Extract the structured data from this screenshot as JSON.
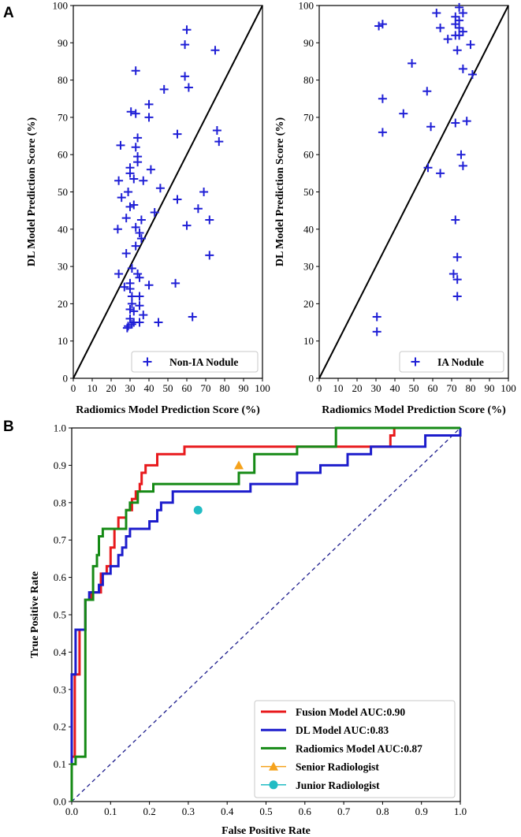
{
  "chart_data": [
    {
      "type": "scatter",
      "panel_label": "A",
      "xlabel": "Radiomics Model Prediction Score (%)",
      "ylabel": "DL Model Prediction Score (%)",
      "xlim": [
        0,
        100
      ],
      "ylim": [
        0,
        100
      ],
      "xticks": [
        "0",
        "10",
        "20",
        "30",
        "40",
        "50",
        "60",
        "70",
        "80",
        "90",
        "100"
      ],
      "yticks": [
        "0",
        "10",
        "20",
        "30",
        "40",
        "50",
        "60",
        "70",
        "80",
        "90",
        "100"
      ],
      "reference_line": [
        [
          0,
          0
        ],
        [
          100,
          100
        ]
      ],
      "legend_label": "Non-IA Nodule",
      "legend_position": "lower-right",
      "marker_color": "#1f1fd6",
      "points": [
        [
          60,
          93.5
        ],
        [
          59,
          89.5
        ],
        [
          75,
          88
        ],
        [
          33,
          82.5
        ],
        [
          59,
          81
        ],
        [
          61,
          78
        ],
        [
          48,
          77.5
        ],
        [
          30.5,
          71.5
        ],
        [
          33,
          71
        ],
        [
          40,
          73.5
        ],
        [
          40,
          70
        ],
        [
          76,
          66.5
        ],
        [
          77,
          63.5
        ],
        [
          55,
          65.5
        ],
        [
          34,
          64.5
        ],
        [
          25,
          62.5
        ],
        [
          33,
          62
        ],
        [
          34,
          59.5
        ],
        [
          34,
          58
        ],
        [
          30,
          56.5
        ],
        [
          41,
          56
        ],
        [
          30,
          55
        ],
        [
          32,
          53.5
        ],
        [
          37,
          53
        ],
        [
          24,
          53
        ],
        [
          46,
          51
        ],
        [
          29,
          50
        ],
        [
          25.5,
          48.5
        ],
        [
          32,
          46.5
        ],
        [
          30,
          46
        ],
        [
          55,
          48
        ],
        [
          69,
          50
        ],
        [
          66,
          45.5
        ],
        [
          72,
          42.5
        ],
        [
          60,
          41
        ],
        [
          43,
          44.5
        ],
        [
          28,
          43
        ],
        [
          36,
          42.5
        ],
        [
          33,
          40.5
        ],
        [
          23.5,
          40
        ],
        [
          35,
          39
        ],
        [
          36,
          37.5
        ],
        [
          33,
          35.5
        ],
        [
          72,
          33
        ],
        [
          28,
          33.5
        ],
        [
          31,
          29.5
        ],
        [
          24,
          28
        ],
        [
          34,
          28
        ],
        [
          35,
          27
        ],
        [
          30,
          25.5
        ],
        [
          27,
          24.5
        ],
        [
          30,
          24
        ],
        [
          40,
          25
        ],
        [
          54,
          25.5
        ],
        [
          31,
          22
        ],
        [
          35,
          22
        ],
        [
          31,
          20
        ],
        [
          35,
          19.5
        ],
        [
          30,
          18.5
        ],
        [
          32,
          18
        ],
        [
          37,
          17
        ],
        [
          30,
          16
        ],
        [
          32,
          15
        ],
        [
          35,
          15
        ],
        [
          29,
          14
        ],
        [
          31,
          14.5
        ],
        [
          28.5,
          13.5
        ],
        [
          45,
          15
        ],
        [
          63,
          16.5
        ]
      ]
    },
    {
      "type": "scatter",
      "xlabel": "Radiomics Model Prediction Score (%)",
      "ylabel": "DL Model Prediction Score (%)",
      "xlim": [
        0,
        100
      ],
      "ylim": [
        0,
        100
      ],
      "xticks": [
        "0",
        "10",
        "20",
        "30",
        "40",
        "50",
        "60",
        "70",
        "80",
        "90",
        "100"
      ],
      "yticks": [
        "0",
        "10",
        "20",
        "30",
        "40",
        "50",
        "60",
        "70",
        "80",
        "90",
        "100"
      ],
      "reference_line": [
        [
          0,
          0
        ],
        [
          100,
          100
        ]
      ],
      "legend_label": "IA Nodule",
      "legend_position": "lower-right",
      "marker_color": "#1f1fd6",
      "points": [
        [
          74,
          99.5
        ],
        [
          76,
          98
        ],
        [
          72,
          97
        ],
        [
          62,
          98
        ],
        [
          74,
          96
        ],
        [
          33.5,
          95
        ],
        [
          31.5,
          94.5
        ],
        [
          72,
          95
        ],
        [
          74,
          94
        ],
        [
          64,
          94
        ],
        [
          76,
          93
        ],
        [
          72,
          92
        ],
        [
          74,
          92
        ],
        [
          68,
          91
        ],
        [
          80,
          89.5
        ],
        [
          73,
          88
        ],
        [
          49,
          84.5
        ],
        [
          76,
          83
        ],
        [
          81,
          81.5
        ],
        [
          57,
          77
        ],
        [
          33.5,
          75
        ],
        [
          44.5,
          71
        ],
        [
          59,
          67.5
        ],
        [
          33.5,
          66
        ],
        [
          72,
          68.5
        ],
        [
          78,
          69
        ],
        [
          75,
          60
        ],
        [
          76,
          57
        ],
        [
          57.5,
          56.5
        ],
        [
          64,
          55
        ],
        [
          72,
          42.5
        ],
        [
          73,
          32.5
        ],
        [
          71,
          28
        ],
        [
          73,
          26.5
        ],
        [
          73,
          22
        ],
        [
          30.5,
          16.5
        ],
        [
          30.5,
          12.5
        ]
      ]
    },
    {
      "type": "line",
      "panel_label": "B",
      "xlabel": "False Positive Rate",
      "ylabel": "True Positive Rate",
      "xlim": [
        0,
        1
      ],
      "ylim": [
        0,
        1
      ],
      "xticks": [
        "0.0",
        "0.1",
        "0.2",
        "0.3",
        "0.4",
        "0.5",
        "0.6",
        "0.7",
        "0.8",
        "0.9",
        "1.0"
      ],
      "yticks": [
        "0.0",
        "0.1",
        "0.2",
        "0.3",
        "0.4",
        "0.5",
        "0.6",
        "0.7",
        "0.8",
        "0.9",
        "1.0"
      ],
      "legend_position": "lower-right",
      "chance_line": [
        [
          0,
          0
        ],
        [
          1,
          1
        ]
      ],
      "series": [
        {
          "name": "Fusion Model AUC:0.90",
          "color": "#e8191c",
          "points": [
            [
              0,
              0
            ],
            [
              0,
              0.12
            ],
            [
              0.008,
              0.12
            ],
            [
              0.008,
              0.34
            ],
            [
              0.02,
              0.34
            ],
            [
              0.02,
              0.46
            ],
            [
              0.035,
              0.46
            ],
            [
              0.035,
              0.54
            ],
            [
              0.05,
              0.54
            ],
            [
              0.05,
              0.56
            ],
            [
              0.075,
              0.56
            ],
            [
              0.075,
              0.61
            ],
            [
              0.09,
              0.61
            ],
            [
              0.09,
              0.63
            ],
            [
              0.1,
              0.63
            ],
            [
              0.1,
              0.68
            ],
            [
              0.11,
              0.68
            ],
            [
              0.11,
              0.73
            ],
            [
              0.12,
              0.73
            ],
            [
              0.12,
              0.76
            ],
            [
              0.14,
              0.76
            ],
            [
              0.14,
              0.78
            ],
            [
              0.155,
              0.78
            ],
            [
              0.155,
              0.81
            ],
            [
              0.165,
              0.81
            ],
            [
              0.165,
              0.83
            ],
            [
              0.175,
              0.83
            ],
            [
              0.175,
              0.85
            ],
            [
              0.18,
              0.85
            ],
            [
              0.18,
              0.88
            ],
            [
              0.19,
              0.88
            ],
            [
              0.19,
              0.9
            ],
            [
              0.21,
              0.9
            ],
            [
              0.21,
              0.9
            ],
            [
              0.22,
              0.9
            ],
            [
              0.22,
              0.93
            ],
            [
              0.29,
              0.93
            ],
            [
              0.29,
              0.95
            ],
            [
              0.82,
              0.95
            ],
            [
              0.82,
              0.98
            ],
            [
              0.83,
              0.98
            ],
            [
              0.83,
              1.0
            ],
            [
              1.0,
              1.0
            ]
          ]
        },
        {
          "name": "DL Model AUC:0.83",
          "color": "#1c1ccc",
          "points": [
            [
              0,
              0
            ],
            [
              0,
              0.34
            ],
            [
              0.01,
              0.34
            ],
            [
              0.01,
              0.46
            ],
            [
              0.035,
              0.46
            ],
            [
              0.035,
              0.54
            ],
            [
              0.045,
              0.54
            ],
            [
              0.045,
              0.56
            ],
            [
              0.07,
              0.56
            ],
            [
              0.07,
              0.58
            ],
            [
              0.08,
              0.58
            ],
            [
              0.08,
              0.61
            ],
            [
              0.1,
              0.61
            ],
            [
              0.1,
              0.63
            ],
            [
              0.12,
              0.63
            ],
            [
              0.12,
              0.66
            ],
            [
              0.13,
              0.66
            ],
            [
              0.13,
              0.68
            ],
            [
              0.14,
              0.68
            ],
            [
              0.14,
              0.71
            ],
            [
              0.15,
              0.71
            ],
            [
              0.15,
              0.73
            ],
            [
              0.2,
              0.73
            ],
            [
              0.2,
              0.75
            ],
            [
              0.22,
              0.75
            ],
            [
              0.22,
              0.78
            ],
            [
              0.23,
              0.78
            ],
            [
              0.23,
              0.8
            ],
            [
              0.26,
              0.8
            ],
            [
              0.26,
              0.83
            ],
            [
              0.46,
              0.83
            ],
            [
              0.46,
              0.85
            ],
            [
              0.58,
              0.85
            ],
            [
              0.58,
              0.88
            ],
            [
              0.64,
              0.88
            ],
            [
              0.64,
              0.9
            ],
            [
              0.71,
              0.9
            ],
            [
              0.71,
              0.93
            ],
            [
              0.77,
              0.93
            ],
            [
              0.77,
              0.95
            ],
            [
              0.91,
              0.95
            ],
            [
              0.91,
              0.98
            ],
            [
              1.0,
              0.98
            ],
            [
              1.0,
              1.0
            ]
          ]
        },
        {
          "name": "Radiomics Model AUC:0.87",
          "color": "#158a15",
          "points": [
            [
              0,
              0
            ],
            [
              0,
              0.1
            ],
            [
              0.01,
              0.1
            ],
            [
              0.01,
              0.12
            ],
            [
              0.035,
              0.12
            ],
            [
              0.035,
              0.54
            ],
            [
              0.055,
              0.54
            ],
            [
              0.055,
              0.59
            ],
            [
              0.055,
              0.63
            ],
            [
              0.065,
              0.63
            ],
            [
              0.065,
              0.66
            ],
            [
              0.07,
              0.66
            ],
            [
              0.07,
              0.71
            ],
            [
              0.08,
              0.71
            ],
            [
              0.08,
              0.73
            ],
            [
              0.14,
              0.73
            ],
            [
              0.14,
              0.78
            ],
            [
              0.15,
              0.78
            ],
            [
              0.15,
              0.8
            ],
            [
              0.17,
              0.8
            ],
            [
              0.17,
              0.83
            ],
            [
              0.21,
              0.83
            ],
            [
              0.21,
              0.85
            ],
            [
              0.43,
              0.85
            ],
            [
              0.43,
              0.88
            ],
            [
              0.47,
              0.88
            ],
            [
              0.47,
              0.93
            ],
            [
              0.58,
              0.93
            ],
            [
              0.58,
              0.95
            ],
            [
              0.68,
              0.95
            ],
            [
              0.68,
              1.0
            ],
            [
              1.0,
              1.0
            ]
          ]
        }
      ],
      "markers": [
        {
          "name": "Senior Radiologist",
          "shape": "triangle",
          "color": "#f5a21c",
          "fpr": 0.43,
          "tpr": 0.9
        },
        {
          "name": "Junior Radiologist",
          "shape": "circle",
          "color": "#22bcc4",
          "fpr": 0.325,
          "tpr": 0.78
        }
      ]
    }
  ]
}
